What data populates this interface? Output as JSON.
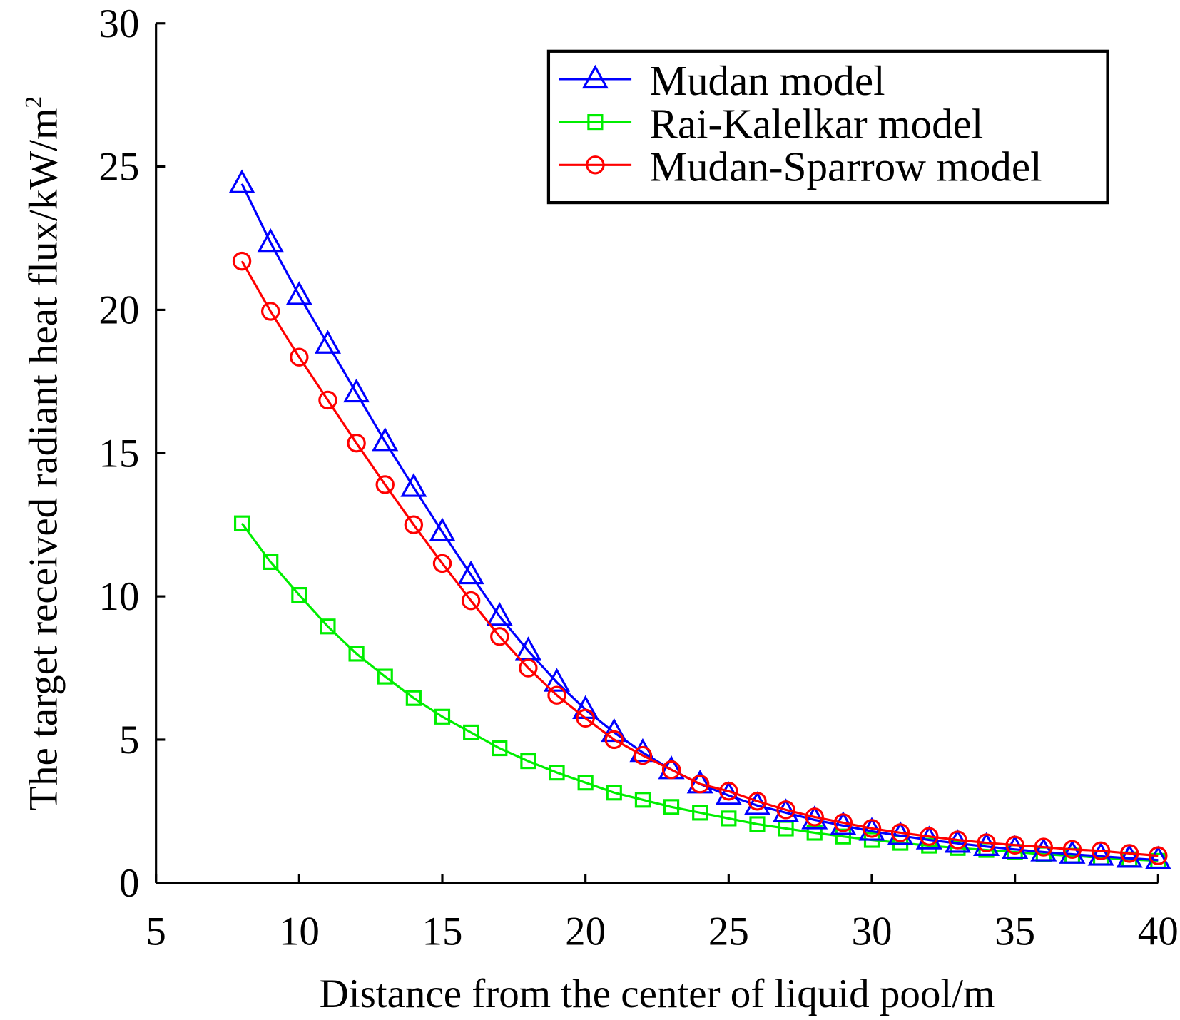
{
  "chart_data": {
    "type": "line",
    "title": "",
    "xlabel": "Distance from the center of liquid pool/m",
    "ylabel": "The target received radiant heat flux/kW/m",
    "ylabel_superscript": "2",
    "xlim": [
      5,
      40
    ],
    "ylim": [
      0,
      30
    ],
    "xticks": [
      "5",
      "10",
      "15",
      "20",
      "25",
      "30",
      "35",
      "40"
    ],
    "yticks": [
      "0",
      "5",
      "10",
      "15",
      "20",
      "25",
      "30"
    ],
    "grid": false,
    "legend_position": "top-right",
    "x": [
      8,
      9,
      10,
      11,
      12,
      13,
      14,
      15,
      16,
      17,
      18,
      19,
      20,
      21,
      22,
      23,
      24,
      25,
      26,
      27,
      28,
      29,
      30,
      31,
      32,
      33,
      34,
      35,
      36,
      37,
      38,
      39,
      40
    ],
    "series": [
      {
        "name": "Mudan model",
        "color": "#0000ff",
        "marker": "triangle",
        "values": [
          24.4,
          22.35,
          20.5,
          18.8,
          17.1,
          15.4,
          13.8,
          12.25,
          10.75,
          9.3,
          8.1,
          7.0,
          6.05,
          5.25,
          4.55,
          3.95,
          3.45,
          3.05,
          2.7,
          2.45,
          2.2,
          2.0,
          1.8,
          1.65,
          1.5,
          1.38,
          1.27,
          1.17,
          1.08,
          1.0,
          0.93,
          0.86,
          0.8
        ]
      },
      {
        "name": "Rai-Kalelkar model",
        "color": "#00ee00",
        "marker": "square",
        "values": [
          12.55,
          11.2,
          10.05,
          8.95,
          8.0,
          7.2,
          6.45,
          5.8,
          5.25,
          4.7,
          4.25,
          3.85,
          3.5,
          3.15,
          2.9,
          2.65,
          2.45,
          2.25,
          2.05,
          1.9,
          1.75,
          1.62,
          1.5,
          1.4,
          1.3,
          1.22,
          1.15,
          1.08,
          1.0,
          0.95,
          0.88,
          0.82,
          0.77
        ]
      },
      {
        "name": "Mudan-Sparrow model",
        "color": "#ff0000",
        "marker": "circle",
        "values": [
          21.7,
          19.95,
          18.35,
          16.85,
          15.35,
          13.9,
          12.5,
          11.15,
          9.85,
          8.6,
          7.5,
          6.55,
          5.75,
          5.0,
          4.45,
          3.95,
          3.45,
          3.2,
          2.85,
          2.55,
          2.3,
          2.1,
          1.9,
          1.75,
          1.62,
          1.5,
          1.4,
          1.32,
          1.25,
          1.17,
          1.12,
          1.03,
          0.95
        ]
      }
    ]
  }
}
